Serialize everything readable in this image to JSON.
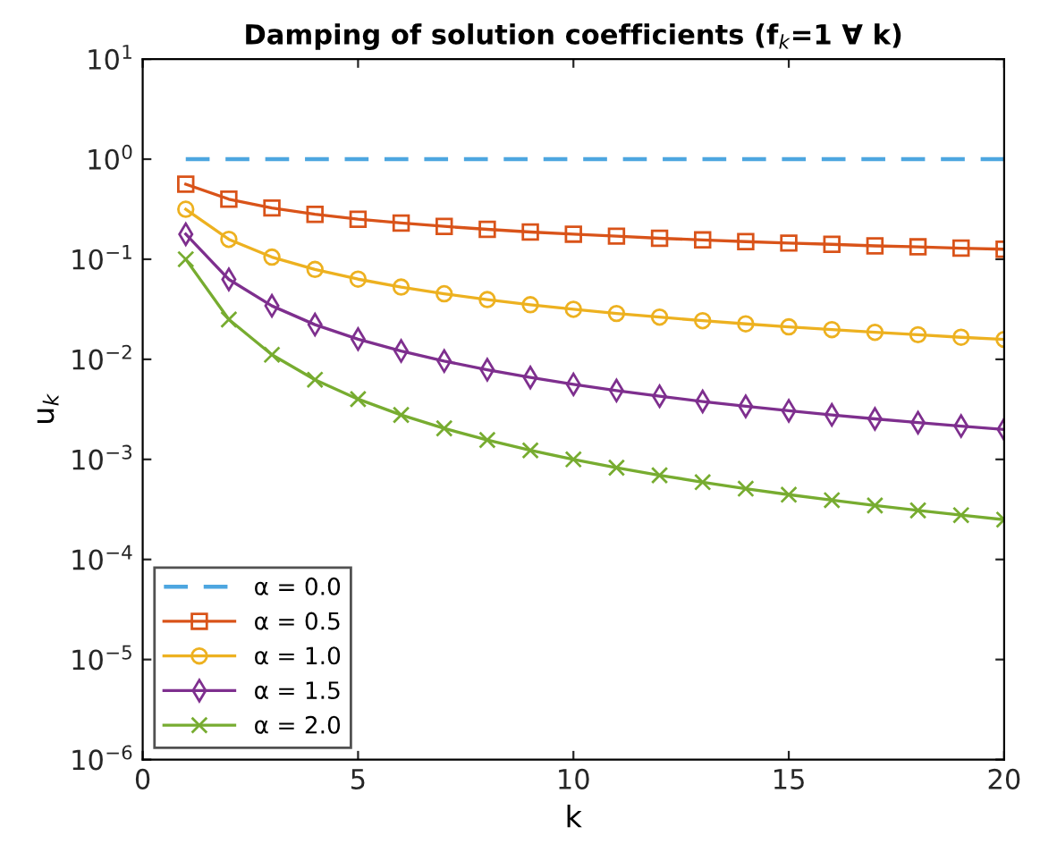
{
  "chart_data": {
    "type": "line",
    "title": "Damping of solution coefficients (f$_{k}$=1 ∀ k)",
    "xlabel": "k",
    "ylabel": "u$_{k}$",
    "x": [
      1,
      2,
      3,
      4,
      5,
      6,
      7,
      8,
      9,
      10,
      11,
      12,
      13,
      14,
      15,
      16,
      17,
      18,
      19,
      20
    ],
    "series": [
      {
        "name": "α = 0.0",
        "color": "#4da6e0",
        "marker": "none",
        "line_style": "dashed",
        "values": [
          1,
          1,
          1,
          1,
          1,
          1,
          1,
          1,
          1,
          1,
          1,
          1,
          1,
          1,
          1,
          1,
          1,
          1,
          1,
          1
        ]
      },
      {
        "name": "α = 0.5",
        "color": "#d95319",
        "marker": "square",
        "line_style": "solid",
        "values": [
          0.562,
          0.398,
          0.325,
          0.281,
          0.251,
          0.23,
          0.213,
          0.199,
          0.187,
          0.178,
          0.17,
          0.162,
          0.156,
          0.15,
          0.145,
          0.141,
          0.136,
          0.133,
          0.129,
          0.126
        ]
      },
      {
        "name": "α = 1.0",
        "color": "#edb120",
        "marker": "circle",
        "line_style": "solid",
        "values": [
          0.316,
          0.158,
          0.105,
          0.0791,
          0.0632,
          0.0527,
          0.0452,
          0.0395,
          0.0351,
          0.0316,
          0.0287,
          0.0264,
          0.0243,
          0.0226,
          0.0211,
          0.0198,
          0.0186,
          0.0176,
          0.0166,
          0.0158
        ]
      },
      {
        "name": "α = 1.5",
        "color": "#7e2f8e",
        "marker": "diamond",
        "line_style": "solid",
        "values": [
          0.178,
          0.0629,
          0.0342,
          0.0222,
          0.0159,
          0.0121,
          0.0096,
          0.00786,
          0.00658,
          0.00562,
          0.00487,
          0.00428,
          0.00379,
          0.00339,
          0.00306,
          0.00278,
          0.00254,
          0.00233,
          0.00215,
          0.00199
        ]
      },
      {
        "name": "α = 2.0",
        "color": "#77ac30",
        "marker": "cross",
        "line_style": "solid",
        "values": [
          0.1,
          0.025,
          0.0111,
          0.00625,
          0.004,
          0.00278,
          0.00204,
          0.00156,
          0.00123,
          0.001,
          0.000826,
          0.000694,
          0.000592,
          0.00051,
          0.000444,
          0.000391,
          0.000346,
          0.000309,
          0.000277,
          0.00025
        ]
      }
    ],
    "log": "y",
    "xlim": [
      0,
      20
    ],
    "xticks": [
      0,
      5,
      10,
      15,
      20
    ],
    "ylim": [
      1e-06,
      10
    ],
    "yticks": [
      {
        "value": 1e-06,
        "label": "10$^{−6}$"
      },
      {
        "value": 1e-05,
        "label": "10$^{−5}$"
      },
      {
        "value": 0.0001,
        "label": "10$^{−4}$"
      },
      {
        "value": 0.001,
        "label": "10$^{−3}$"
      },
      {
        "value": 0.01,
        "label": "10$^{−2}$"
      },
      {
        "value": 0.1,
        "label": "10$^{−1}$"
      },
      {
        "value": 1,
        "label": "10$^{0}$"
      },
      {
        "value": 10,
        "label": "10$^{1}$"
      }
    ],
    "grid": false,
    "legend": "bottom left"
  }
}
